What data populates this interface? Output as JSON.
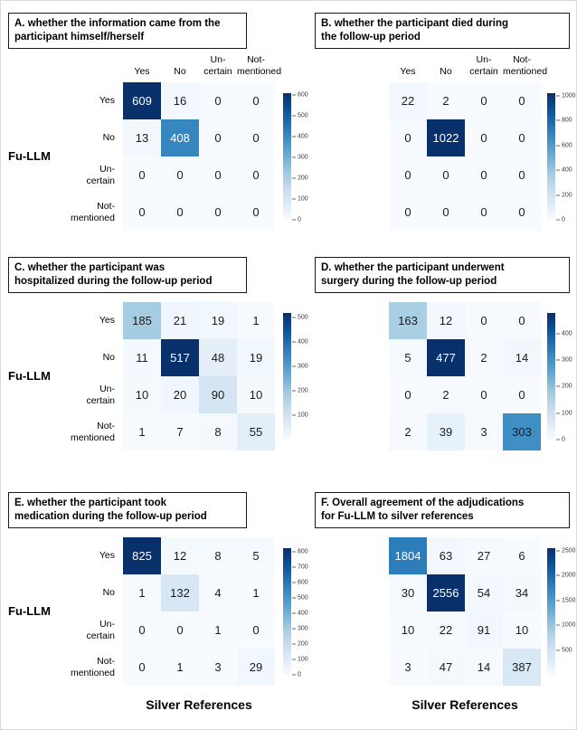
{
  "figure": {
    "x_axis_label": "Silver References",
    "y_axis_label": "Fu-LLM",
    "col_header_lines": [
      [
        "Yes"
      ],
      [
        "No"
      ],
      [
        "Un-",
        "certain"
      ],
      [
        "Not-",
        "mentioned"
      ]
    ],
    "row_label_lines": [
      [
        "Yes"
      ],
      [
        "No"
      ],
      [
        "Un-",
        "certain"
      ],
      [
        "Not-",
        "mentioned"
      ]
    ],
    "colors": {
      "colormap": "Blues",
      "cmap_low": "#f7fbff",
      "cmap_high": "#08306b",
      "title_border": "#1a1a1a",
      "cell_text_dark": "#1b1b1b",
      "cell_text_light": "#ffffff"
    }
  },
  "chart_data": [
    {
      "panel": "A",
      "type": "heatmap",
      "title": "A. whether the information came from the participant himself/herself",
      "title_lines": [
        "A. whether the information came from the",
        "participant himself/herself"
      ],
      "x_categories": [
        "Yes",
        "No",
        "Uncertain",
        "Not-mentioned"
      ],
      "y_categories": [
        "Yes",
        "No",
        "Uncertain",
        "Not-mentioned"
      ],
      "values": [
        [
          609,
          16,
          0,
          0
        ],
        [
          13,
          408,
          0,
          0
        ],
        [
          0,
          0,
          0,
          0
        ],
        [
          0,
          0,
          0,
          0
        ]
      ],
      "vmin": 0,
      "vmax": 609,
      "colorbar_ticks": [
        600,
        500,
        400,
        300,
        200,
        100,
        0
      ],
      "has_column_headers": true,
      "has_row_labels": true,
      "show_x_axis_label": false
    },
    {
      "panel": "B",
      "type": "heatmap",
      "title": "B. whether the participant died during the follow-up period",
      "title_lines": [
        "B. whether the participant died during",
        "the follow-up period"
      ],
      "x_categories": [
        "Yes",
        "No",
        "Uncertain",
        "Not-mentioned"
      ],
      "y_categories": [
        "Yes",
        "No",
        "Uncertain",
        "Not-mentioned"
      ],
      "values": [
        [
          22,
          2,
          0,
          0
        ],
        [
          0,
          1022,
          0,
          0
        ],
        [
          0,
          0,
          0,
          0
        ],
        [
          0,
          0,
          0,
          0
        ]
      ],
      "vmin": 0,
      "vmax": 1022,
      "colorbar_ticks": [
        1000,
        800,
        600,
        400,
        200,
        0
      ],
      "has_column_headers": true,
      "has_row_labels": false,
      "show_x_axis_label": false
    },
    {
      "panel": "C",
      "type": "heatmap",
      "title": "C. whether the participant was hospitalized during the follow-up period",
      "title_lines": [
        "C. whether the participant was",
        "hospitalized during the follow-up period"
      ],
      "x_categories": [
        "Yes",
        "No",
        "Uncertain",
        "Not-mentioned"
      ],
      "y_categories": [
        "Yes",
        "No",
        "Uncertain",
        "Not-mentioned"
      ],
      "values": [
        [
          185,
          21,
          19,
          1
        ],
        [
          11,
          517,
          48,
          19
        ],
        [
          10,
          20,
          90,
          10
        ],
        [
          1,
          7,
          8,
          55
        ]
      ],
      "vmin": 1,
      "vmax": 517,
      "colorbar_ticks": [
        500,
        400,
        300,
        200,
        100
      ],
      "has_column_headers": false,
      "has_row_labels": true,
      "show_x_axis_label": false
    },
    {
      "panel": "D",
      "type": "heatmap",
      "title": "D. whether the participant underwent surgery during the follow-up period",
      "title_lines": [
        "D. whether the participant underwent",
        "surgery during the follow-up period"
      ],
      "x_categories": [
        "Yes",
        "No",
        "Uncertain",
        "Not-mentioned"
      ],
      "y_categories": [
        "Yes",
        "No",
        "Uncertain",
        "Not-mentioned"
      ],
      "values": [
        [
          163,
          12,
          0,
          0
        ],
        [
          5,
          477,
          2,
          14
        ],
        [
          0,
          2,
          0,
          0
        ],
        [
          2,
          39,
          3,
          303
        ]
      ],
      "vmin": 0,
      "vmax": 477,
      "colorbar_ticks": [
        400,
        300,
        200,
        100,
        0
      ],
      "has_column_headers": false,
      "has_row_labels": false,
      "show_x_axis_label": false
    },
    {
      "panel": "E",
      "type": "heatmap",
      "title": "E. whether the participant took medication during the follow-up period",
      "title_lines": [
        "E. whether the participant took",
        "medication during the follow-up period"
      ],
      "x_categories": [
        "Yes",
        "No",
        "Uncertain",
        "Not-mentioned"
      ],
      "y_categories": [
        "Yes",
        "No",
        "Uncertain",
        "Not-mentioned"
      ],
      "values": [
        [
          825,
          12,
          8,
          5
        ],
        [
          1,
          132,
          4,
          1
        ],
        [
          0,
          0,
          1,
          0
        ],
        [
          0,
          1,
          3,
          29
        ]
      ],
      "vmin": 0,
      "vmax": 825,
      "colorbar_ticks": [
        800,
        700,
        600,
        500,
        400,
        300,
        200,
        100,
        0
      ],
      "has_column_headers": false,
      "has_row_labels": true,
      "show_x_axis_label": true
    },
    {
      "panel": "F",
      "type": "heatmap",
      "title": "F. Overall agreement of the adjudications for Fu-LLM to silver references",
      "title_lines": [
        "F. Overall agreement of the adjudications",
        "for Fu-LLM to silver references"
      ],
      "x_categories": [
        "Yes",
        "No",
        "Uncertain",
        "Not-mentioned"
      ],
      "y_categories": [
        "Yes",
        "No",
        "Uncertain",
        "Not-mentioned"
      ],
      "values": [
        [
          1804,
          63,
          27,
          6
        ],
        [
          30,
          2556,
          54,
          34
        ],
        [
          10,
          22,
          91,
          10
        ],
        [
          3,
          47,
          14,
          387
        ]
      ],
      "vmin": 3,
      "vmax": 2556,
      "colorbar_ticks": [
        2500,
        2000,
        1500,
        1000,
        500
      ],
      "has_column_headers": false,
      "has_row_labels": false,
      "show_x_axis_label": true
    }
  ]
}
